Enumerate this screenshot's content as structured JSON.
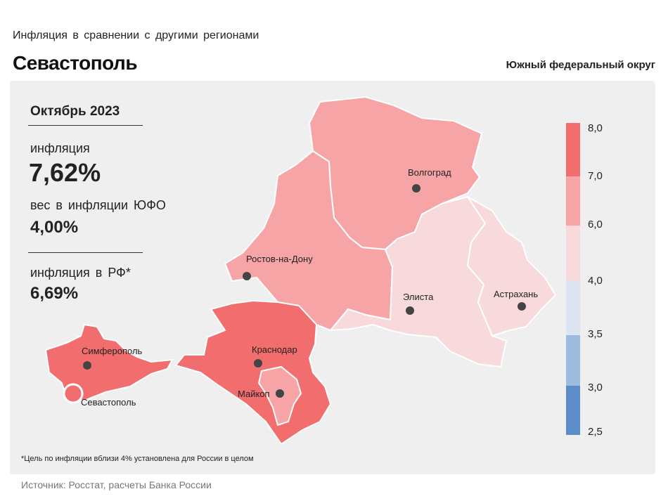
{
  "header": {
    "subtitle": "Инфляция  в сравнении  с другими  регионами",
    "title": "Севастополь",
    "district": "Южный федеральный округ"
  },
  "stats": {
    "period": "Октябрь 2023",
    "inflation_label": "инфляция",
    "inflation_value": "7,62%",
    "weight_label": "вес в инфляции  ЮФО",
    "weight_value": "4,00%",
    "rf_label": "инфляция  в РФ*",
    "rf_value": "6,69%"
  },
  "footnote": "*Цель по инфляции вблизи 4% установлена для России в целом",
  "source": "Источник: Росстат, расчеты Банка России",
  "legend": {
    "ticks": [
      "8,0",
      "7,0",
      "6,0",
      "4,0",
      "3,5",
      "3,0",
      "2,5"
    ],
    "colors": [
      "#f26d6d",
      "#f7a4a6",
      "#f8dadd",
      "#dde5f2",
      "#9dbbdf",
      "#5b8ec8"
    ]
  },
  "cities": {
    "volgograd": "Волгоград",
    "rostov": "Ростов-на-Дону",
    "elista": "Элиста",
    "astrakhan": "Астрахань",
    "simferopol": "Симферополь",
    "krasnodar": "Краснодар",
    "maikop": "Майкоп",
    "sevastopol": "Севастополь"
  },
  "region_colors": {
    "high": "#f26d6d",
    "mid": "#f7a4a6",
    "low": "#f8dadd"
  }
}
